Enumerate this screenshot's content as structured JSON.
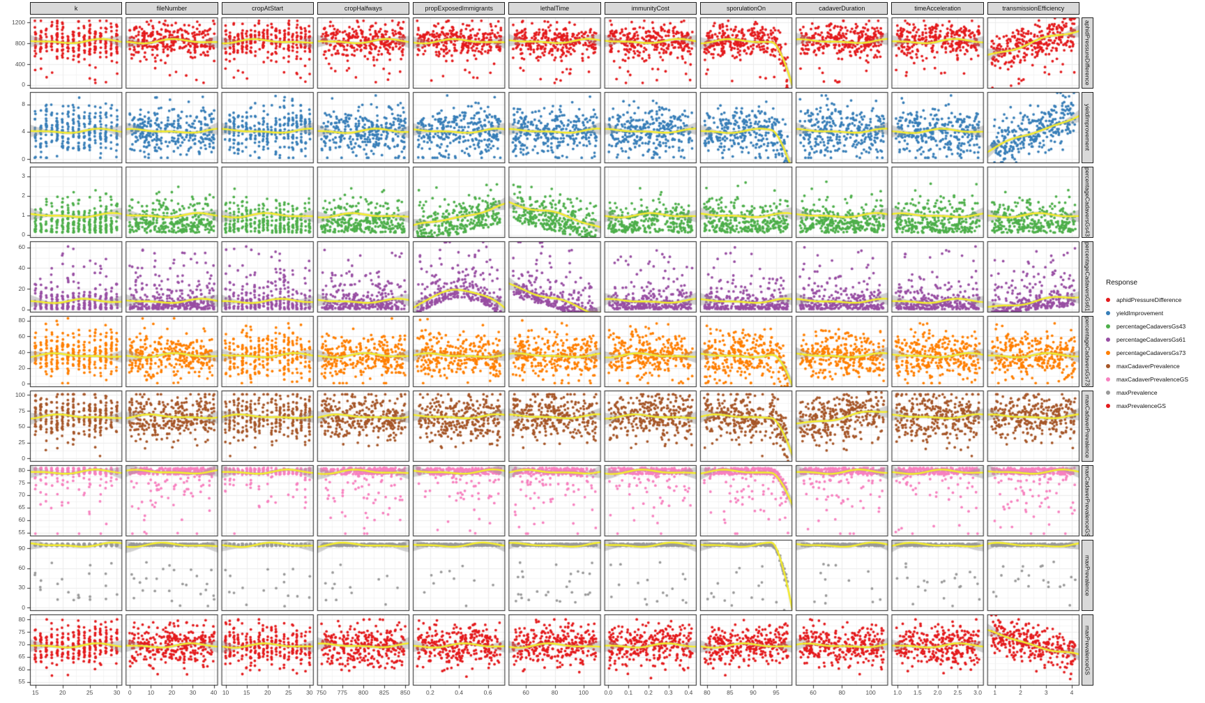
{
  "chart_data": {
    "type": "scatter",
    "layout": "facet-grid scatterplot matrix: 9 response rows x 11 predictor columns, loess smooth per panel",
    "n_points_per_panel": 300,
    "seed": 11,
    "colors": {
      "strip_bg": "#D9D9D9",
      "panel_bg": "#FFFFFF",
      "panel_border": "#1F1F1F",
      "grid_major": "#EBEBEB",
      "grid_minor": "#F5F5F5",
      "tick_mark": "#333333",
      "tick_label": "#4D4D4D",
      "smooth_line": "#F7EF27",
      "smooth_ribbon": "rgba(150,150,150,0.42)"
    },
    "columns": [
      {
        "label": "k",
        "domain": [
          14,
          31
        ],
        "int_min": 15,
        "int_max": 30,
        "ticks": [
          {
            "v": 15,
            "label": "15"
          },
          {
            "v": 20,
            "label": "20"
          },
          {
            "v": 25,
            "label": "25"
          },
          {
            "v": 30,
            "label": "30"
          }
        ]
      },
      {
        "label": "fileNumber",
        "domain": [
          -2,
          42
        ],
        "int_min": 0,
        "int_max": 40,
        "ticks": [
          {
            "v": 0,
            "label": "0"
          },
          {
            "v": 10,
            "label": "10"
          },
          {
            "v": 20,
            "label": "20"
          },
          {
            "v": 30,
            "label": "30"
          },
          {
            "v": 40,
            "label": "40"
          }
        ]
      },
      {
        "label": "cropAtStart",
        "domain": [
          9,
          31
        ],
        "int_min": 10,
        "int_max": 30,
        "ticks": [
          {
            "v": 10,
            "label": "10"
          },
          {
            "v": 15,
            "label": "15"
          },
          {
            "v": 20,
            "label": "20"
          },
          {
            "v": 25,
            "label": "25"
          },
          {
            "v": 30,
            "label": "30"
          }
        ]
      },
      {
        "label": "cropHalfways",
        "domain": [
          745,
          855
        ],
        "ticks": [
          {
            "v": 750,
            "label": "750"
          },
          {
            "v": 775,
            "label": "775"
          },
          {
            "v": 800,
            "label": "800"
          },
          {
            "v": 825,
            "label": "825"
          },
          {
            "v": 850,
            "label": "850"
          }
        ]
      },
      {
        "label": "propExposedImmigrants",
        "domain": [
          0.08,
          0.72
        ],
        "ticks": [
          {
            "v": 0.2,
            "label": "0.2"
          },
          {
            "v": 0.4,
            "label": "0.4"
          },
          {
            "v": 0.6,
            "label": "0.6"
          }
        ]
      },
      {
        "label": "lethalTime",
        "domain": [
          48,
          112
        ],
        "ticks": [
          {
            "v": 60,
            "label": "60"
          },
          {
            "v": 80,
            "label": "80"
          },
          {
            "v": 100,
            "label": "100"
          }
        ]
      },
      {
        "label": "immunityCost",
        "domain": [
          -0.02,
          0.44
        ],
        "ticks": [
          {
            "v": 0.0,
            "label": "0.0"
          },
          {
            "v": 0.1,
            "label": "0.1"
          },
          {
            "v": 0.2,
            "label": "0.2"
          },
          {
            "v": 0.3,
            "label": "0.3"
          },
          {
            "v": 0.4,
            "label": "0.4"
          }
        ]
      },
      {
        "label": "sporulationOn",
        "domain": [
          78.5,
          98.5
        ],
        "ticks": [
          {
            "v": 80,
            "label": "80"
          },
          {
            "v": 85,
            "label": "85"
          },
          {
            "v": 90,
            "label": "90"
          },
          {
            "v": 95,
            "label": "95"
          }
        ]
      },
      {
        "label": "cadaverDuration",
        "domain": [
          48,
          112
        ],
        "ticks": [
          {
            "v": 60,
            "label": "60"
          },
          {
            "v": 80,
            "label": "80"
          },
          {
            "v": 100,
            "label": "100"
          }
        ]
      },
      {
        "label": "timeAcceleration",
        "domain": [
          0.85,
          3.15
        ],
        "ticks": [
          {
            "v": 1.0,
            "label": "1.0"
          },
          {
            "v": 1.5,
            "label": "1.5"
          },
          {
            "v": 2.0,
            "label": "2.0"
          },
          {
            "v": 2.5,
            "label": "2.5"
          },
          {
            "v": 3.0,
            "label": "3.0"
          }
        ]
      },
      {
        "label": "transmissionEfficiency",
        "domain": [
          0.7,
          4.3
        ],
        "ticks": [
          {
            "v": 1,
            "label": "1"
          },
          {
            "v": 2,
            "label": "2"
          },
          {
            "v": 3,
            "label": "3"
          },
          {
            "v": 4,
            "label": "4"
          }
        ]
      }
    ],
    "rows": [
      {
        "label": "aphidPressureDifference",
        "color": "#E41A1C",
        "domain": [
          -70,
          1300
        ],
        "line_center": 840,
        "ticks": [
          {
            "v": 0,
            "label": "0"
          },
          {
            "v": 400,
            "label": "400"
          },
          {
            "v": 800,
            "label": "800"
          },
          {
            "v": 1200,
            "label": "1200"
          }
        ],
        "dist": {
          "kind": "normal",
          "mean": 850,
          "sd": 165,
          "clip": [
            40,
            1235
          ],
          "low_outlier_frac": 0.03,
          "low_outlier_range": [
            30,
            330
          ]
        }
      },
      {
        "label": "yieldImprovement",
        "color": "#377EB8",
        "domain": [
          -0.6,
          9.8
        ],
        "line_center": 4.1,
        "ticks": [
          {
            "v": 0,
            "label": "0"
          },
          {
            "v": 4,
            "label": "4"
          },
          {
            "v": 8,
            "label": "8"
          }
        ],
        "dist": {
          "kind": "normal",
          "mean": 4.1,
          "sd": 1.8,
          "clip": [
            0.2,
            9.3
          ]
        }
      },
      {
        "label": "percentageCadaversGs43",
        "color": "#4DAF4A",
        "domain": [
          -0.15,
          3.5
        ],
        "line_center": 1.0,
        "ticks": [
          {
            "v": 0,
            "label": "0"
          },
          {
            "v": 1,
            "label": "1"
          },
          {
            "v": 2,
            "label": "2"
          },
          {
            "v": 3,
            "label": "3"
          }
        ],
        "dist": {
          "kind": "halfnormal",
          "base": 0.12,
          "sd": 0.8,
          "clip": [
            0.03,
            3.3
          ]
        }
      },
      {
        "label": "percentageCadaversGs61",
        "color": "#984EA3",
        "domain": [
          -3,
          66
        ],
        "line_center": 8,
        "ticks": [
          {
            "v": 0,
            "label": "0"
          },
          {
            "v": 20,
            "label": "20"
          },
          {
            "v": 40,
            "label": "40"
          },
          {
            "v": 60,
            "label": "60"
          }
        ],
        "dist": {
          "kind": "exp",
          "mean": 8,
          "clip": [
            0.3,
            62
          ],
          "high_outlier_frac": 0.07,
          "high_outlier_range": [
            22,
            61
          ]
        }
      },
      {
        "label": "percentageCadaversGs73",
        "color": "#FF7F00",
        "domain": [
          -4,
          86
        ],
        "line_center": 36,
        "ticks": [
          {
            "v": 0,
            "label": "0"
          },
          {
            "v": 20,
            "label": "20"
          },
          {
            "v": 40,
            "label": "40"
          },
          {
            "v": 60,
            "label": "60"
          },
          {
            "v": 80,
            "label": "80"
          }
        ],
        "dist": {
          "kind": "normal",
          "mean": 36,
          "sd": 15,
          "clip": [
            1,
            83
          ]
        }
      },
      {
        "label": "maxCadaverPrevalence",
        "color": "#A65628",
        "domain": [
          -5,
          107
        ],
        "line_center": 66,
        "ticks": [
          {
            "v": 0,
            "label": "0"
          },
          {
            "v": 25,
            "label": "25"
          },
          {
            "v": 50,
            "label": "50"
          },
          {
            "v": 75,
            "label": "75"
          },
          {
            "v": 100,
            "label": "100"
          }
        ],
        "dist": {
          "kind": "normal",
          "mean": 66,
          "sd": 19,
          "clip": [
            4,
            101
          ]
        }
      },
      {
        "label": "maxCadaverPrevalenceGS",
        "color": "#F781BF",
        "domain": [
          53.5,
          82
        ],
        "line_center": 79.3,
        "ticks": [
          {
            "v": 55,
            "label": "55"
          },
          {
            "v": 60,
            "label": "60"
          },
          {
            "v": 65,
            "label": "65"
          },
          {
            "v": 70,
            "label": "70"
          },
          {
            "v": 75,
            "label": "75"
          },
          {
            "v": 80,
            "label": "80"
          }
        ],
        "dist": {
          "kind": "topband",
          "band": [
            78.3,
            80.9
          ],
          "band_frac": 0.8,
          "tail": [
            55,
            78.3
          ],
          "tail_kind": "near",
          "clip": [
            54.6,
            81
          ]
        }
      },
      {
        "label": "maxPrevalence",
        "color": "#999999",
        "domain": [
          -5,
          103
        ],
        "line_center": 95.2,
        "ticks": [
          {
            "v": 0,
            "label": "0"
          },
          {
            "v": 30,
            "label": "30"
          },
          {
            "v": 60,
            "label": "60"
          },
          {
            "v": 90,
            "label": "90"
          }
        ],
        "dist": {
          "kind": "topband",
          "band": [
            93.5,
            97.2
          ],
          "band_frac": 0.94,
          "tail": [
            2,
            70
          ],
          "tail_kind": "uniform",
          "clip": [
            0,
            98
          ]
        }
      },
      {
        "label": "maxPrevalenceGS",
        "color": "#E41A1C",
        "domain": [
          53.5,
          82
        ],
        "line_center": 69.5,
        "ticks": [
          {
            "v": 55,
            "label": "55"
          },
          {
            "v": 60,
            "label": "60"
          },
          {
            "v": 65,
            "label": "65"
          },
          {
            "v": 70,
            "label": "70"
          },
          {
            "v": 75,
            "label": "75"
          },
          {
            "v": 80,
            "label": "80"
          }
        ],
        "dist": {
          "kind": "normal",
          "mean": 69.5,
          "sd": 4,
          "clip": [
            56.5,
            80
          ]
        }
      }
    ],
    "smooth_overrides": [
      {
        "row": 0,
        "col": 7,
        "shape": "drop_right",
        "amp": 0.6
      },
      {
        "row": 0,
        "col": 10,
        "shape": "rise",
        "amp": 0.35
      },
      {
        "row": 1,
        "col": 7,
        "shape": "drop_right",
        "amp": 0.55
      },
      {
        "row": 1,
        "col": 10,
        "shape": "rise",
        "amp": 0.5
      },
      {
        "row": 2,
        "col": 4,
        "shape": "rise",
        "amp": 0.3
      },
      {
        "row": 2,
        "col": 5,
        "shape": "fall",
        "amp": 0.35
      },
      {
        "row": 3,
        "col": 4,
        "shape": "hump",
        "amp": 0.3
      },
      {
        "row": 3,
        "col": 5,
        "shape": "fall",
        "amp": 0.45
      },
      {
        "row": 3,
        "col": 10,
        "shape": "rise",
        "amp": 0.15
      },
      {
        "row": 4,
        "col": 7,
        "shape": "drop_right",
        "amp": 0.45
      },
      {
        "row": 5,
        "col": 7,
        "shape": "drop_right",
        "amp": 0.55
      },
      {
        "row": 5,
        "col": 8,
        "shape": "rise",
        "amp": 0.18
      },
      {
        "row": 6,
        "col": 7,
        "shape": "drop_right",
        "amp": 0.45
      },
      {
        "row": 7,
        "col": 7,
        "shape": "drop_right",
        "amp": 0.9
      },
      {
        "row": 8,
        "col": 10,
        "shape": "fall",
        "amp": 0.35
      }
    ],
    "legend": {
      "title": "Response",
      "items": [
        {
          "label": "aphidPressureDifference",
          "color": "#E41A1C"
        },
        {
          "label": "yieldImprovement",
          "color": "#377EB8"
        },
        {
          "label": "percentageCadaversGs43",
          "color": "#4DAF4A"
        },
        {
          "label": "percentageCadaversGs61",
          "color": "#984EA3"
        },
        {
          "label": "percentageCadaversGs73",
          "color": "#FF7F00"
        },
        {
          "label": "maxCadaverPrevalence",
          "color": "#A65628"
        },
        {
          "label": "maxCadaverPrevalenceGS",
          "color": "#F781BF"
        },
        {
          "label": "maxPrevalence",
          "color": "#999999"
        },
        {
          "label": "maxPrevalenceGS",
          "color": "#E41A1C"
        }
      ]
    }
  }
}
